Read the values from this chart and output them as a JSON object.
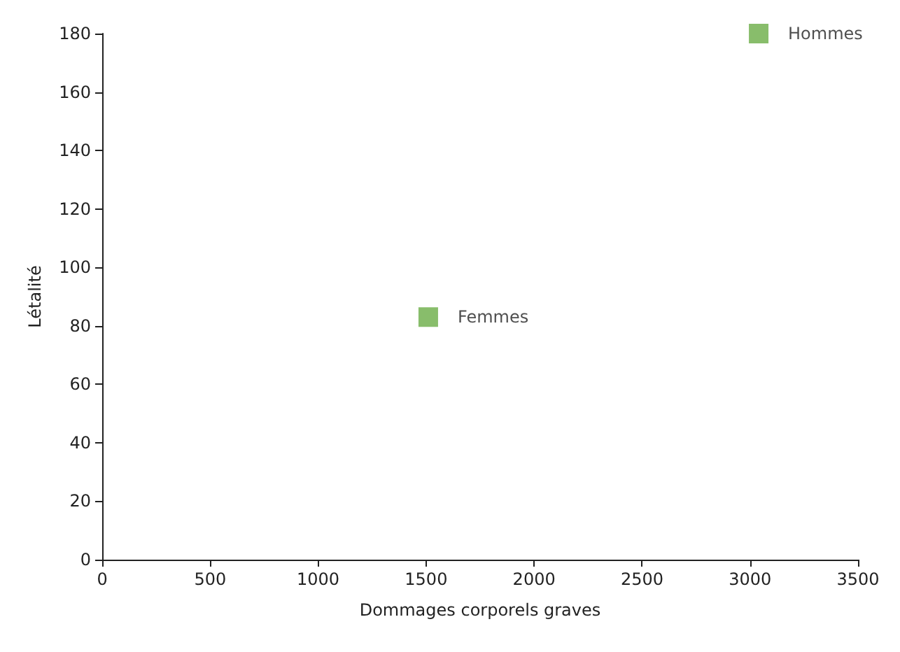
{
  "chart_data": {
    "type": "scatter",
    "xlabel": "Dommages corporels graves",
    "ylabel": "Létalité",
    "series": [
      {
        "name": "Femmes",
        "color": "#6aad46",
        "x": [
          1510
        ],
        "values": [
          83
        ]
      },
      {
        "name": "Hommes",
        "color": "#6aad46",
        "x": [
          3040
        ],
        "values": [
          180
        ]
      }
    ],
    "xlim": [
      0,
      3500
    ],
    "xticks": [
      0,
      500,
      1000,
      1500,
      2000,
      2500,
      3000,
      3500
    ],
    "ylim": [
      0,
      180
    ],
    "yticks": [
      0,
      20,
      40,
      60,
      80,
      100,
      120,
      140,
      160,
      180
    ],
    "grid": false,
    "legend": false,
    "marker": "square"
  }
}
